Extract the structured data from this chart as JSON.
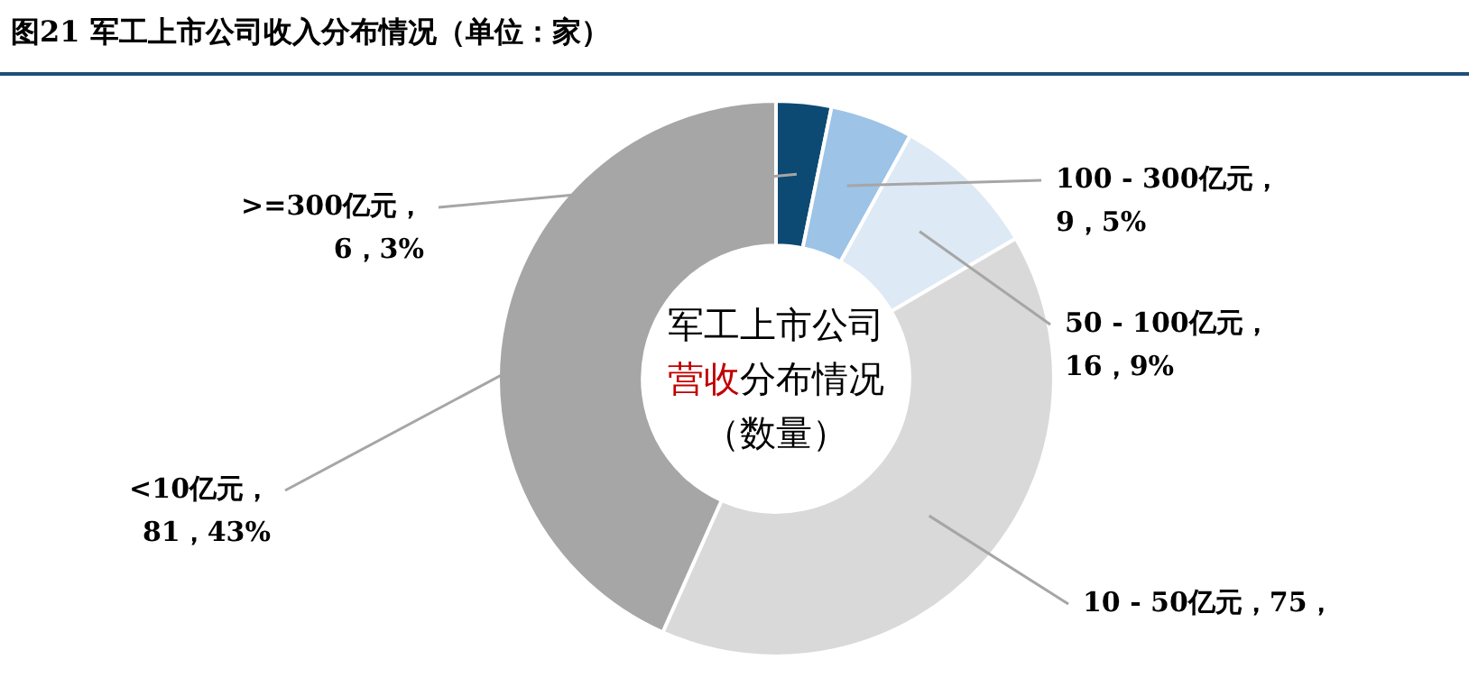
{
  "chart_data": {
    "type": "donut",
    "title": "图21 军工上市公司收入分布情况（单位：家）",
    "categories": [
      ">=300亿元",
      "100 - 300亿元",
      "50 - 100亿元",
      "10 - 50亿元",
      "<10亿元"
    ],
    "values": [
      6,
      9,
      16,
      75,
      81
    ],
    "colors": [
      "#0d4a73",
      "#9dc3e6",
      "#dde9f5",
      "#d9d9d9",
      "#a6a6a6"
    ],
    "value_labels": [
      "，\n6，3%",
      "，\n9，5%",
      "，\n16，9%",
      "，75，",
      "，\n81，43%"
    ],
    "annotations": [
      "军工上市公司",
      "营收",
      "分布情况",
      "（数量）"
    ],
    "legend": false
  }
}
